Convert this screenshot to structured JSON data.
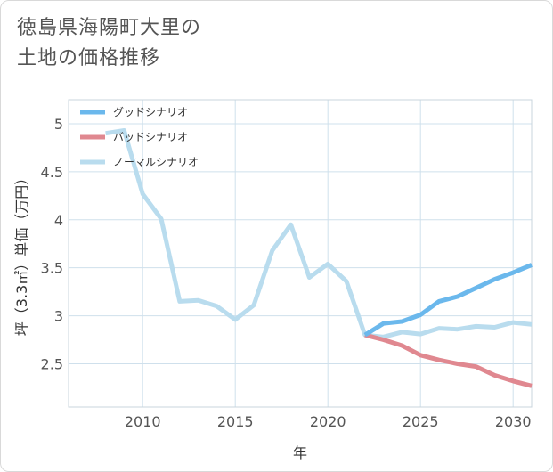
{
  "title_line1": "徳島県海陽町大里の",
  "title_line2": "土地の価格推移",
  "chart_data": {
    "type": "line",
    "xlabel": "年",
    "ylabel": "坪（3.3㎡）単価（万円）",
    "xlim": [
      2006,
      2031
    ],
    "ylim": [
      2.05,
      5.25
    ],
    "xticks": [
      2010,
      2015,
      2020,
      2025,
      2030
    ],
    "yticks": [
      2.5,
      3,
      3.5,
      4,
      4.5,
      5
    ],
    "xtick_labels": [
      "2010",
      "2015",
      "2020",
      "2025",
      "2030"
    ],
    "ytick_labels": [
      "2.5",
      "3",
      "3.5",
      "4",
      "4.5",
      "5"
    ],
    "grid": true,
    "legend_position": "top-left",
    "series": [
      {
        "name": "グッドシナリオ",
        "color": "#6bb8ec",
        "x": [
          2022,
          2023,
          2024,
          2025,
          2026,
          2027,
          2028,
          2029,
          2030,
          2031
        ],
        "y": [
          2.8,
          2.92,
          2.94,
          3.01,
          3.15,
          3.2,
          3.29,
          3.38,
          3.45,
          3.53
        ]
      },
      {
        "name": "バッドシナリオ",
        "color": "#e08890",
        "x": [
          2022,
          2023,
          2024,
          2025,
          2026,
          2027,
          2028,
          2029,
          2030,
          2031
        ],
        "y": [
          2.8,
          2.75,
          2.69,
          2.59,
          2.54,
          2.5,
          2.47,
          2.38,
          2.32,
          2.27
        ]
      },
      {
        "name": "ノーマルシナリオ",
        "color": "#b9dcee",
        "x": [
          2008,
          2009,
          2010,
          2011,
          2012,
          2013,
          2014,
          2015,
          2016,
          2017,
          2018,
          2019,
          2020,
          2021,
          2022,
          2023,
          2024,
          2025,
          2026,
          2027,
          2028,
          2029,
          2030,
          2031
        ],
        "y": [
          4.9,
          4.93,
          4.27,
          4.01,
          3.15,
          3.16,
          3.1,
          2.96,
          3.11,
          3.68,
          3.95,
          3.4,
          3.54,
          3.36,
          2.8,
          2.78,
          2.83,
          2.81,
          2.87,
          2.86,
          2.89,
          2.88,
          2.93,
          2.91
        ]
      }
    ]
  }
}
